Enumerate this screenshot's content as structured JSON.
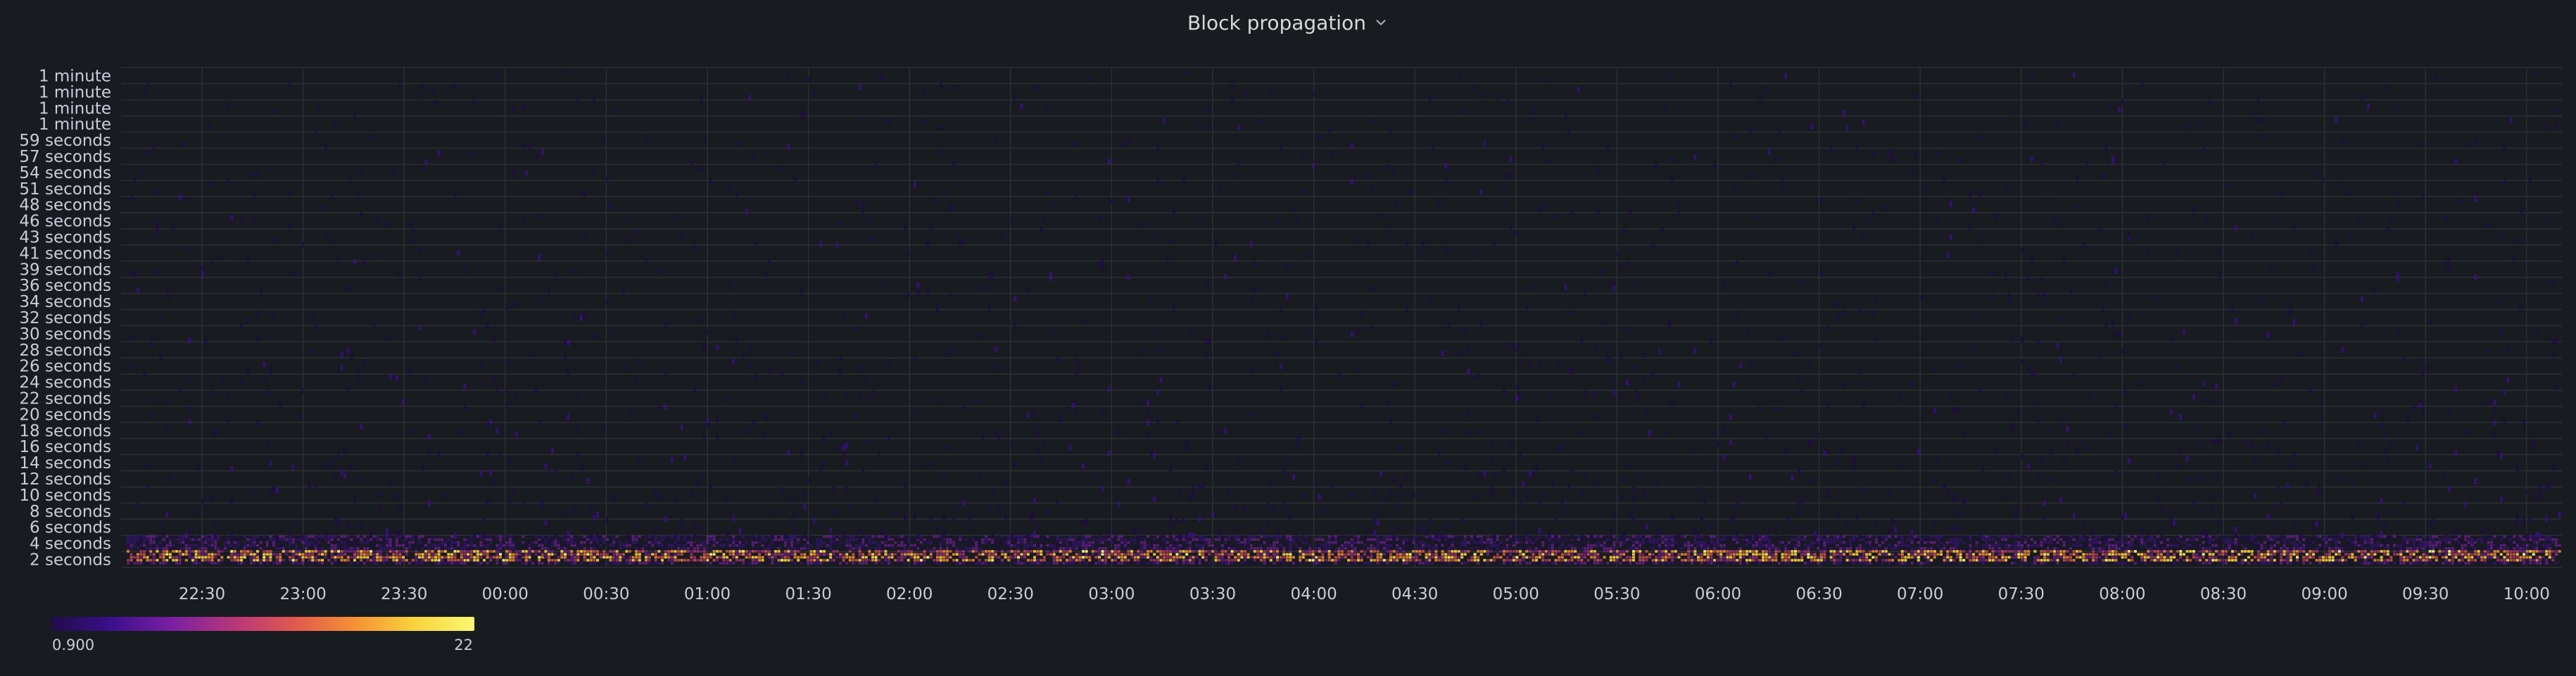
{
  "panel": {
    "title": "Block propagation",
    "menu_icon": "chevron-down-icon"
  },
  "chart_data": {
    "type": "heatmap",
    "title": "Block propagation",
    "xlabel": "",
    "ylabel": "",
    "x_ticks": [
      "22:30",
      "23:00",
      "23:30",
      "00:00",
      "00:30",
      "01:00",
      "01:30",
      "02:00",
      "02:30",
      "03:00",
      "03:30",
      "04:00",
      "04:30",
      "05:00",
      "05:30",
      "06:00",
      "06:30",
      "07:00",
      "07:30",
      "08:00",
      "08:30",
      "09:00",
      "09:30",
      "10:00"
    ],
    "y_ticks": [
      "2 seconds",
      "4 seconds",
      "6 seconds",
      "8 seconds",
      "10 seconds",
      "12 seconds",
      "14 seconds",
      "16 seconds",
      "18 seconds",
      "20 seconds",
      "22 seconds",
      "24 seconds",
      "26 seconds",
      "28 seconds",
      "30 seconds",
      "32 seconds",
      "34 seconds",
      "36 seconds",
      "39 seconds",
      "41 seconds",
      "43 seconds",
      "46 seconds",
      "48 seconds",
      "51 seconds",
      "54 seconds",
      "57 seconds",
      "59 seconds",
      "1 minute",
      "1 minute",
      "1 minute",
      "1 minute"
    ],
    "y_range_seconds": [
      0,
      62
    ],
    "grid": true,
    "color_scale": {
      "min": 0.9,
      "max": 22,
      "min_label": "0.900",
      "max_label": "22",
      "colors": [
        "#1f0c48",
        "#3c0f8c",
        "#7a1fa2",
        "#b5367a",
        "#e0574f",
        "#f58f35",
        "#f9d23c",
        "#f9f871"
      ]
    },
    "description_of_density": {
      "dense_band_seconds": [
        0.5,
        4
      ],
      "peak_band_seconds": [
        1,
        2.5
      ],
      "sparse_tail_to_seconds": 62
    }
  }
}
